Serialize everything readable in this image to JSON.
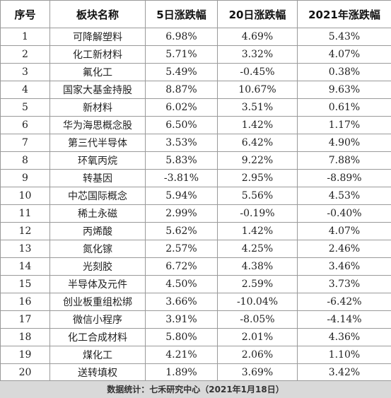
{
  "table": {
    "headers": [
      "序号",
      "板块名称",
      "5日涨跌幅",
      "20日涨跌幅",
      "2021年涨跌幅"
    ],
    "rows": [
      [
        "1",
        "可降解塑料",
        "6.98%",
        "4.69%",
        "5.43%"
      ],
      [
        "2",
        "化工新材料",
        "5.71%",
        "3.32%",
        "4.07%"
      ],
      [
        "3",
        "氟化工",
        "5.49%",
        "-0.45%",
        "0.38%"
      ],
      [
        "4",
        "国家大基金持股",
        "8.87%",
        "10.67%",
        "9.63%"
      ],
      [
        "5",
        "新材料",
        "6.02%",
        "3.51%",
        "0.61%"
      ],
      [
        "6",
        "华为海思概念股",
        "6.50%",
        "1.42%",
        "1.17%"
      ],
      [
        "7",
        "第三代半导体",
        "3.53%",
        "6.42%",
        "4.90%"
      ],
      [
        "8",
        "环氧丙烷",
        "5.83%",
        "9.22%",
        "7.88%"
      ],
      [
        "9",
        "转基因",
        "-3.81%",
        "2.95%",
        "-8.89%"
      ],
      [
        "10",
        "中芯国际概念",
        "5.94%",
        "5.56%",
        "4.53%"
      ],
      [
        "11",
        "稀土永磁",
        "2.99%",
        "-0.19%",
        "-0.40%"
      ],
      [
        "12",
        "丙烯酸",
        "5.62%",
        "1.42%",
        "4.07%"
      ],
      [
        "13",
        "氮化镓",
        "2.57%",
        "4.25%",
        "2.46%"
      ],
      [
        "14",
        "光刻胶",
        "6.72%",
        "4.38%",
        "3.46%"
      ],
      [
        "15",
        "半导体及元件",
        "4.50%",
        "2.59%",
        "3.73%"
      ],
      [
        "16",
        "创业板重组松绑",
        "3.66%",
        "-10.04%",
        "-6.42%"
      ],
      [
        "17",
        "微信小程序",
        "3.91%",
        "-8.05%",
        "-4.14%"
      ],
      [
        "18",
        "化工合成材料",
        "5.80%",
        "2.01%",
        "4.36%"
      ],
      [
        "19",
        "煤化工",
        "4.21%",
        "2.06%",
        "1.10%"
      ],
      [
        "20",
        "送转填权",
        "1.89%",
        "3.69%",
        "3.42%"
      ]
    ]
  },
  "footer": "数据统计：七禾研究中心（2021年1月18日）"
}
